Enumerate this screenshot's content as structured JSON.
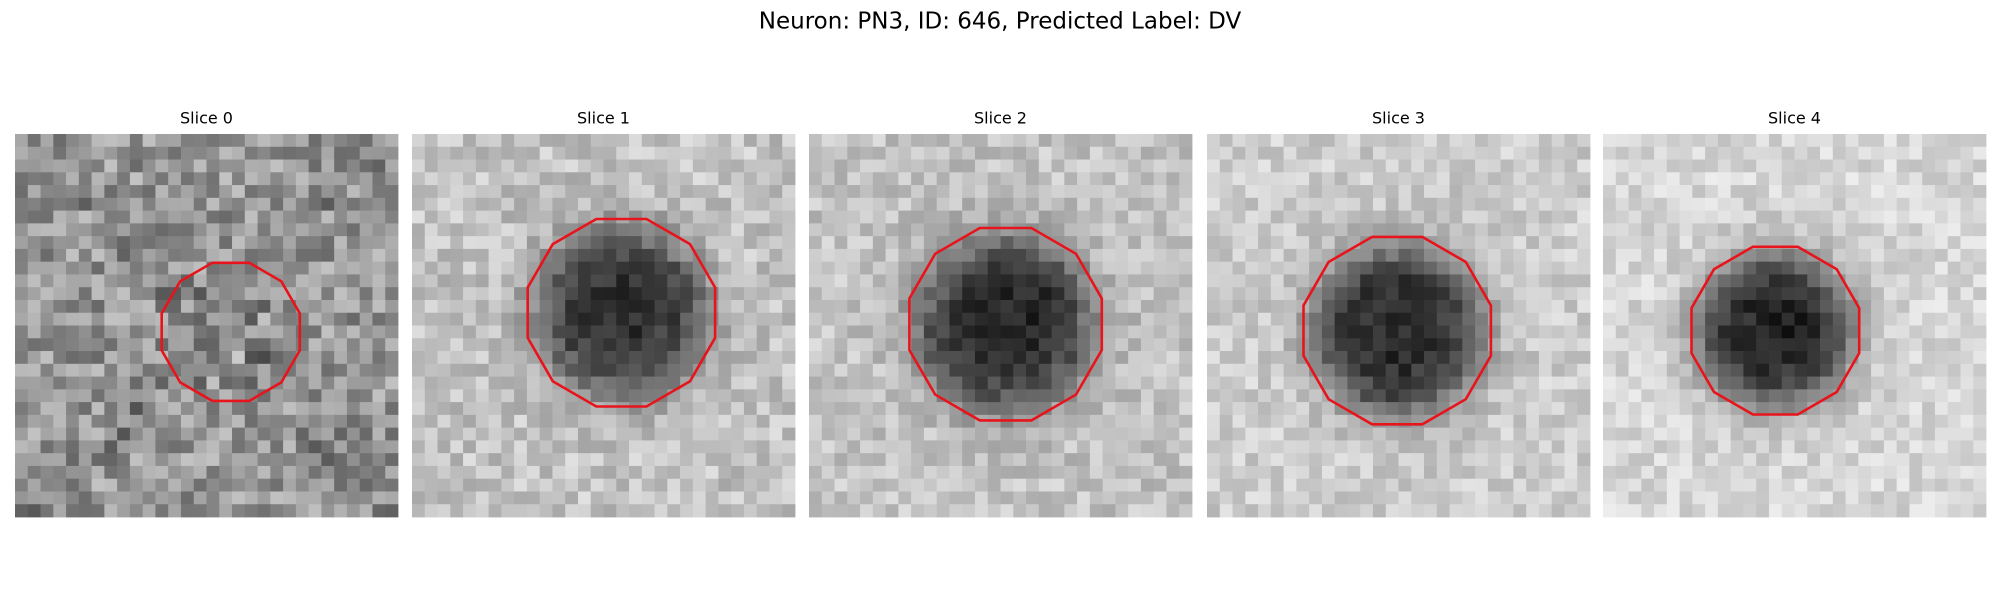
{
  "title": "Neuron: PN3, ID: 646, Predicted Label: DV",
  "panels": [
    {
      "title": "Slice 0"
    },
    {
      "title": "Slice 1"
    },
    {
      "title": "Slice 2"
    },
    {
      "title": "Slice 3"
    },
    {
      "title": "Slice 4"
    }
  ]
}
